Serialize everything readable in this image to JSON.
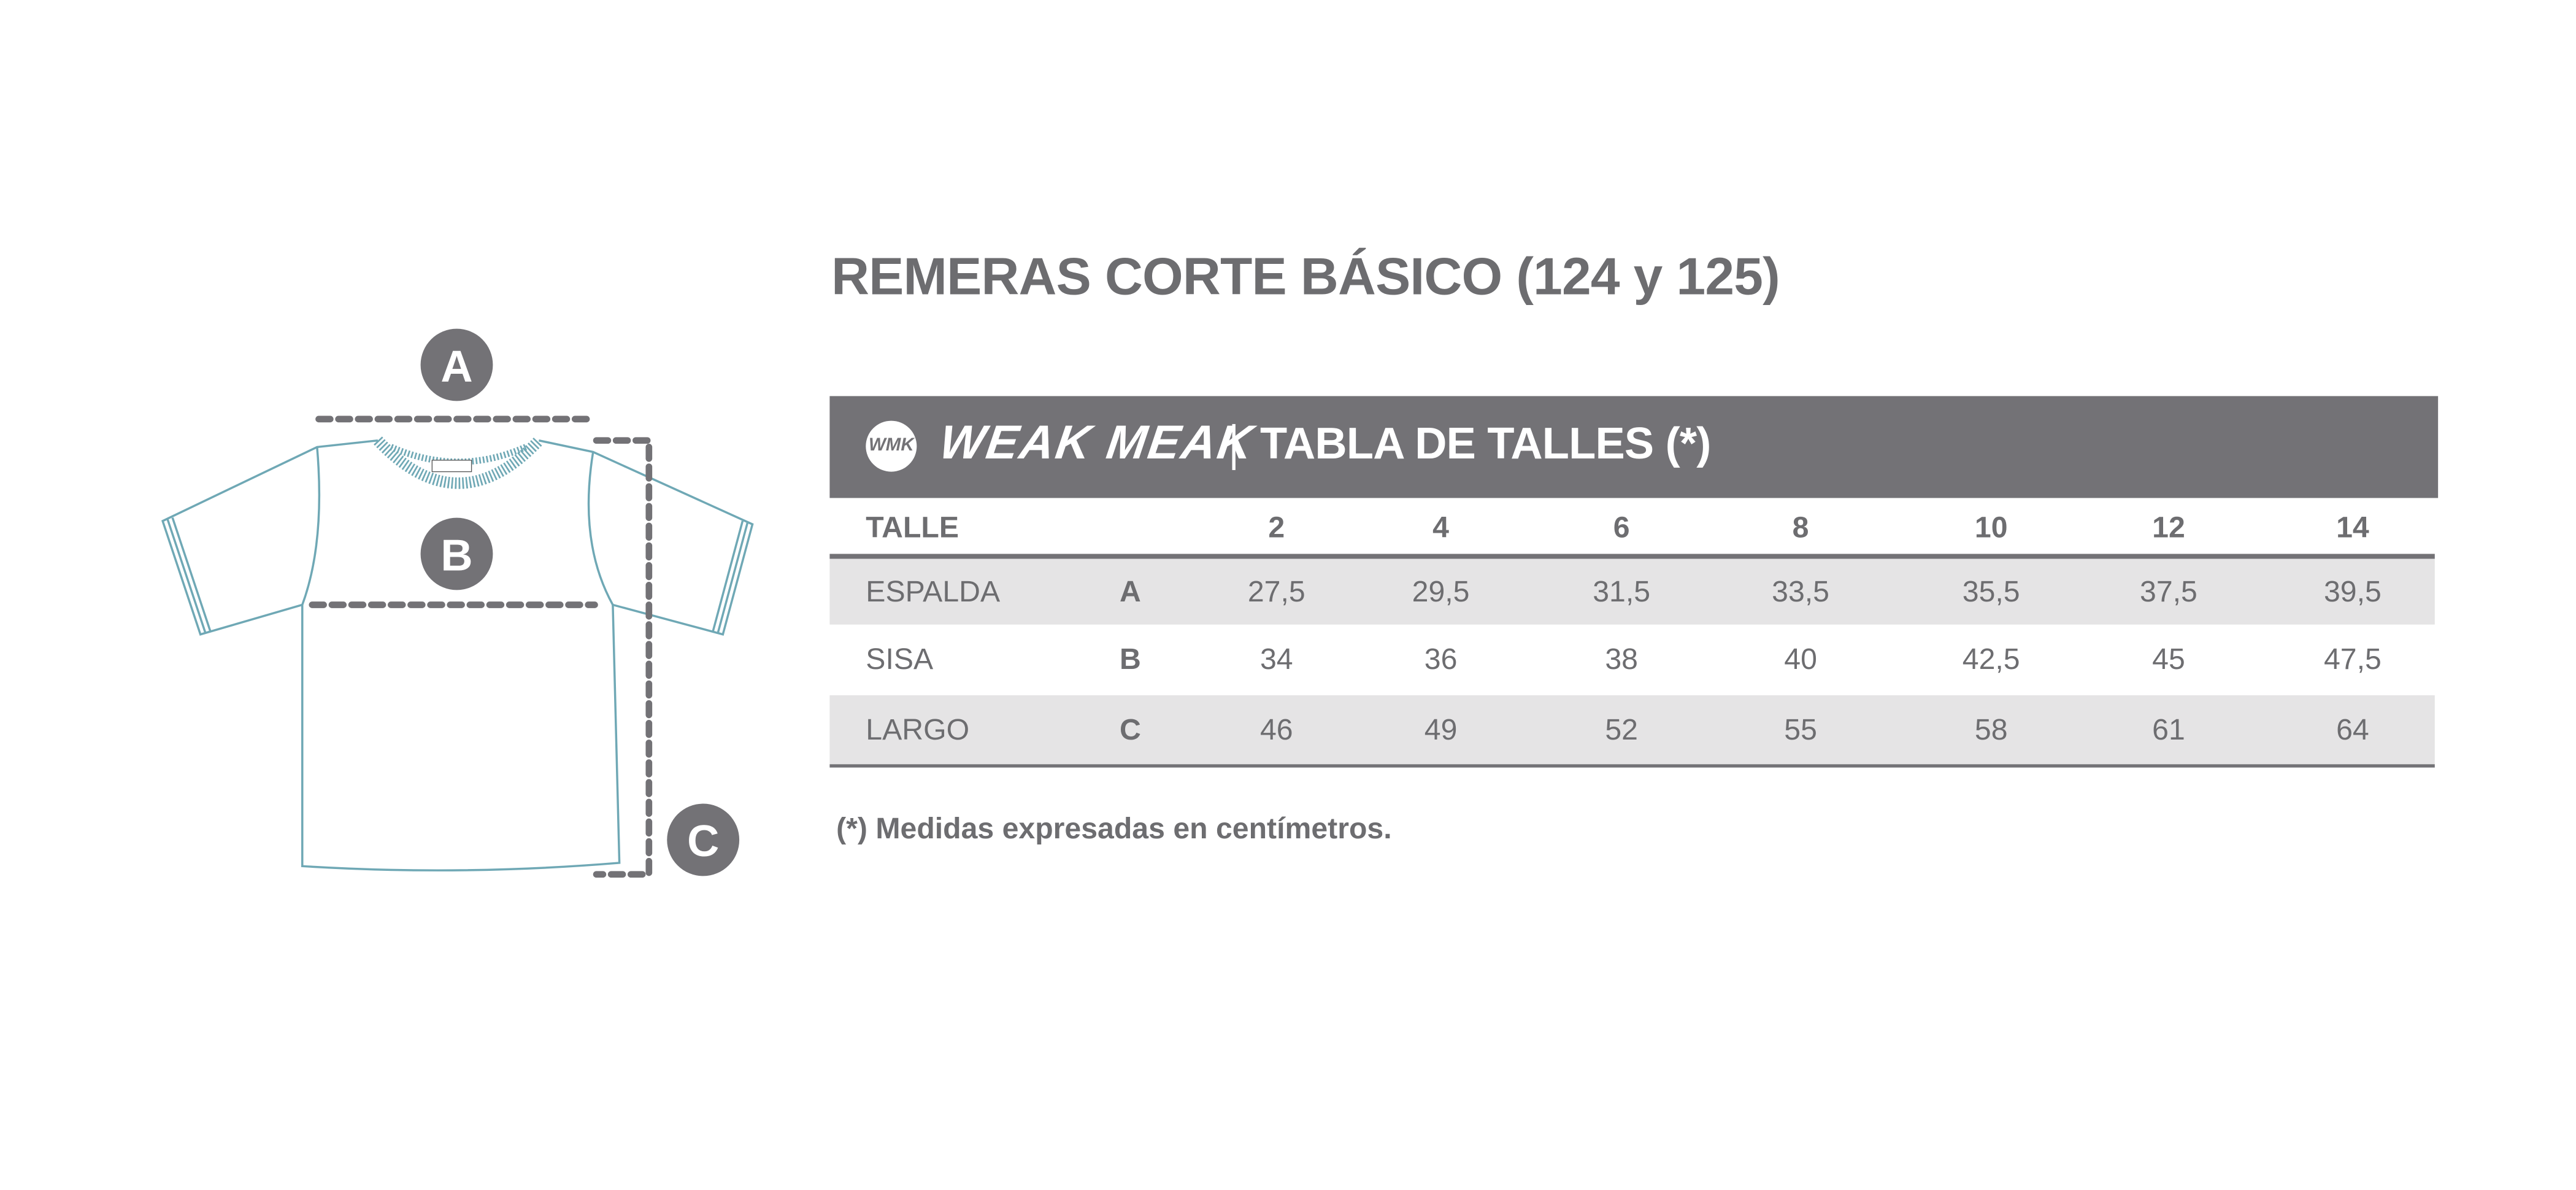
{
  "title": "REMERAS CORTE BÁSICO (124 y 125)",
  "header": {
    "logo_mark": "WMK",
    "brand": "WEAK MEAK",
    "table_title": "TABLA DE TALLES (*)",
    "bar_color": "#737276"
  },
  "table": {
    "size_label": "TALLE",
    "sizes": [
      "2",
      "4",
      "6",
      "8",
      "10",
      "12",
      "14"
    ],
    "rows": [
      {
        "name": "ESPALDA",
        "letter": "A",
        "values": [
          "27,5",
          "29,5",
          "31,5",
          "33,5",
          "35,5",
          "37,5",
          "39,5"
        ]
      },
      {
        "name": "SISA",
        "letter": "B",
        "values": [
          "34",
          "36",
          "38",
          "40",
          "42,5",
          "45",
          "47,5"
        ]
      },
      {
        "name": "LARGO",
        "letter": "C",
        "values": [
          "46",
          "49",
          "52",
          "55",
          "58",
          "61",
          "64"
        ]
      }
    ]
  },
  "footnote": "(*) Medidas expresadas en centímetros.",
  "diagram": {
    "labels": [
      "A",
      "B",
      "C"
    ],
    "outline_color": "#6fa8b5",
    "marker_color": "#737276"
  }
}
